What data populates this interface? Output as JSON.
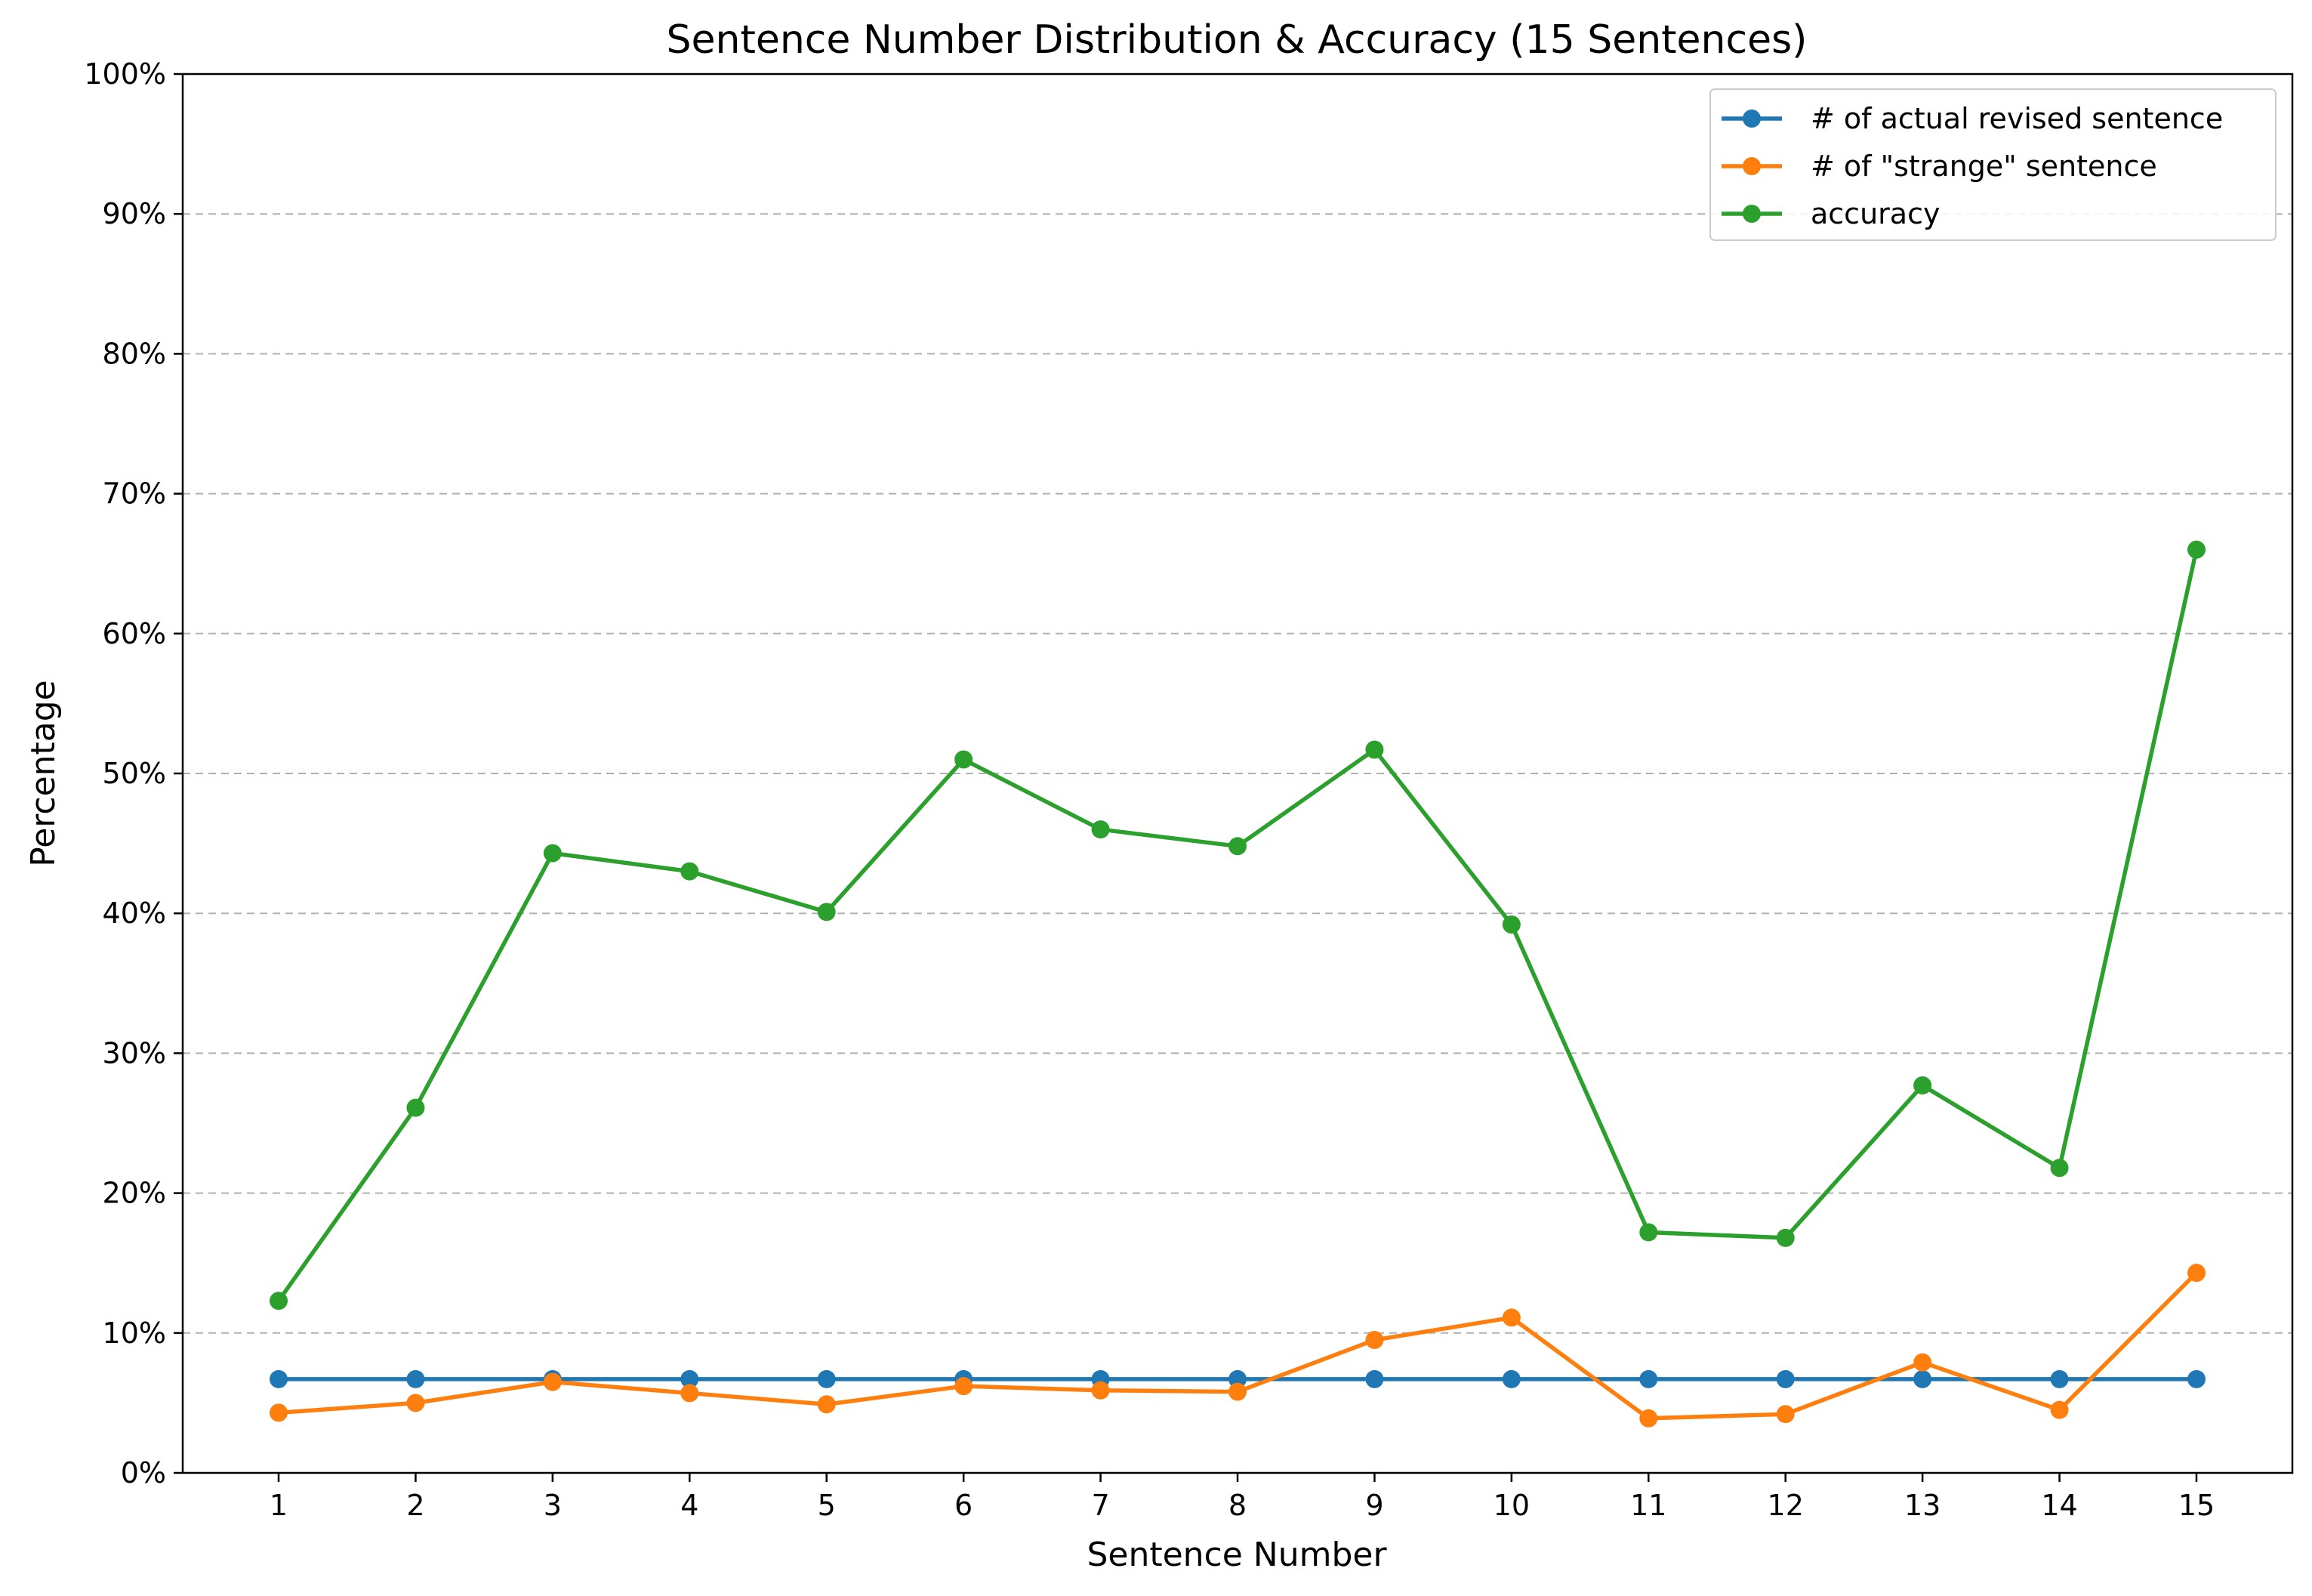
{
  "chart_data": {
    "type": "line",
    "title": "Sentence Number Distribution & Accuracy (15 Sentences)",
    "xlabel": "Sentence Number",
    "ylabel": "Percentage",
    "x": [
      1,
      2,
      3,
      4,
      5,
      6,
      7,
      8,
      9,
      10,
      11,
      12,
      13,
      14,
      15
    ],
    "xlim": [
      0.3,
      15.7
    ],
    "ylim": [
      0,
      100
    ],
    "yticks": [
      0,
      10,
      20,
      30,
      40,
      50,
      60,
      70,
      80,
      90,
      100
    ],
    "ytick_labels": [
      "0%",
      "10%",
      "20%",
      "30%",
      "40%",
      "50%",
      "60%",
      "70%",
      "80%",
      "90%",
      "100%"
    ],
    "grid": "horizontal dashed",
    "legend_position": "top-right",
    "series": [
      {
        "name": "# of actual revised sentence",
        "color": "#1f77b4",
        "values": [
          6.7,
          6.7,
          6.7,
          6.7,
          6.7,
          6.7,
          6.7,
          6.7,
          6.7,
          6.7,
          6.7,
          6.7,
          6.7,
          6.7,
          6.7
        ]
      },
      {
        "name": "# of \"strange\" sentence",
        "color": "#ff7f0e",
        "values": [
          4.3,
          5.0,
          6.5,
          5.7,
          4.9,
          6.2,
          5.9,
          5.8,
          9.5,
          11.1,
          3.9,
          4.2,
          7.9,
          4.5,
          14.3
        ]
      },
      {
        "name": "accuracy",
        "color": "#2ca02c",
        "values": [
          12.3,
          26.1,
          44.3,
          43.0,
          40.1,
          51.0,
          46.0,
          44.8,
          51.7,
          39.2,
          17.2,
          16.8,
          27.7,
          21.8,
          66.0
        ]
      }
    ]
  }
}
